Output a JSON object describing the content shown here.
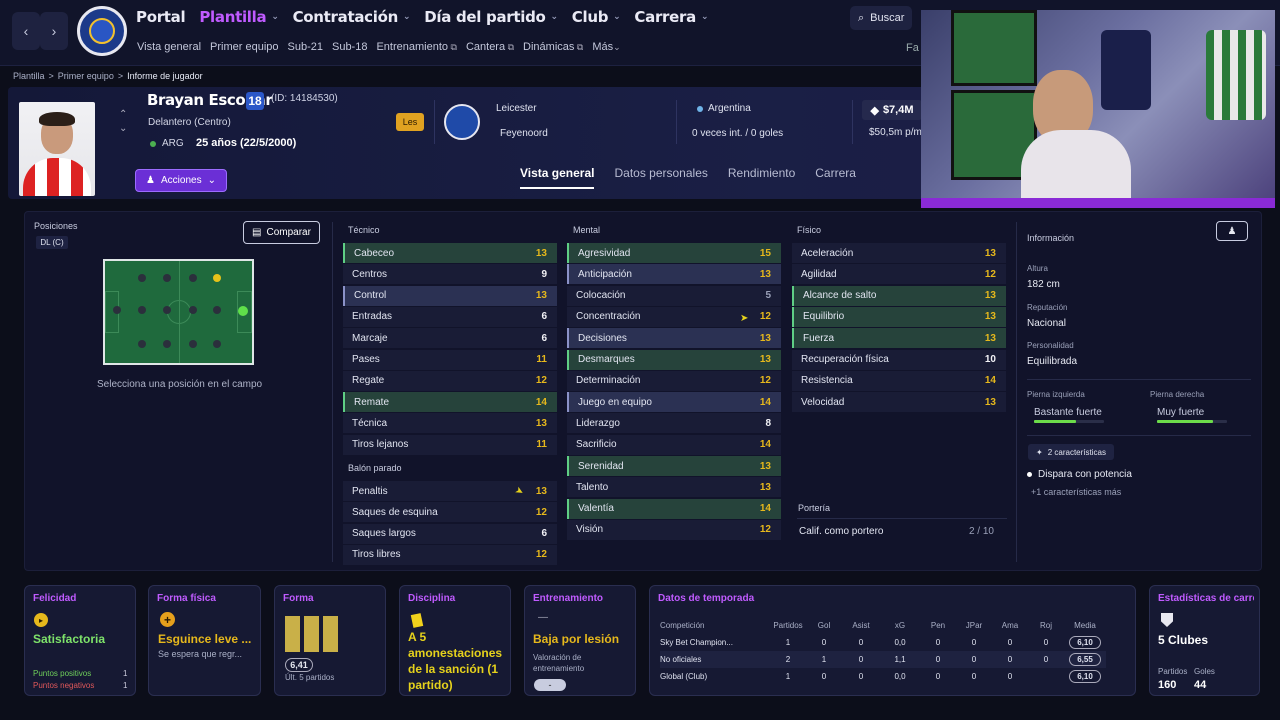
{
  "nav": {
    "main": [
      {
        "label": "Portal",
        "active": false
      },
      {
        "label": "Plantilla",
        "active": true
      },
      {
        "label": "Contratación",
        "active": false
      },
      {
        "label": "Día del partido",
        "active": false
      },
      {
        "label": "Club",
        "active": false
      },
      {
        "label": "Carrera",
        "active": false
      }
    ],
    "sub": [
      "Vista general",
      "Primer equipo",
      "Sub-21",
      "Sub-18",
      "Entrenamiento",
      "Cantera",
      "Dinámicas",
      "Más"
    ],
    "search_label": "Buscar",
    "fav_label": "Fa"
  },
  "breadcrumb": [
    "Plantilla",
    "Primer equipo",
    "Informe de jugador"
  ],
  "player": {
    "name": "Brayan Escobar",
    "number": "18",
    "id": "(ID: 14184530)",
    "position": "Delantero (Centro)",
    "nationality_code": "ARG",
    "age": "25 años (22/5/2000)",
    "actions_label": "Acciones",
    "loan_badge": "Les",
    "club": "Leicester",
    "loan_club": "Feyenoord",
    "nation": "Argentina",
    "caps": "0 veces int. / 0 goles",
    "value": "$7,4M",
    "wage": "$50,5m p/m"
  },
  "tabs": [
    "Vista general",
    "Datos personales",
    "Rendimiento",
    "Carrera"
  ],
  "positions": {
    "title": "Posiciones",
    "badge": "DL (C)",
    "compare_label": "Comparar",
    "hint": "Selecciona una posición en el campo"
  },
  "attributes": {
    "tecnico_title": "Técnico",
    "tecnico": [
      {
        "name": "Cabeceo",
        "value": "13",
        "hl": "g"
      },
      {
        "name": "Centros",
        "value": "9",
        "hl": ""
      },
      {
        "name": "Control",
        "value": "13",
        "hl": "b"
      },
      {
        "name": "Entradas",
        "value": "6",
        "hl": ""
      },
      {
        "name": "Marcaje",
        "value": "6",
        "hl": ""
      },
      {
        "name": "Pases",
        "value": "11",
        "hl": ""
      },
      {
        "name": "Regate",
        "value": "12",
        "hl": ""
      },
      {
        "name": "Remate",
        "value": "14",
        "hl": "g"
      },
      {
        "name": "Técnica",
        "value": "13",
        "hl": ""
      },
      {
        "name": "Tiros lejanos",
        "value": "11",
        "hl": ""
      }
    ],
    "balon_title": "Balón parado",
    "balon": [
      {
        "name": "Penaltis",
        "value": "13",
        "hl": ""
      },
      {
        "name": "Saques de esquina",
        "value": "12",
        "hl": ""
      },
      {
        "name": "Saques largos",
        "value": "6",
        "hl": ""
      },
      {
        "name": "Tiros libres",
        "value": "12",
        "hl": ""
      }
    ],
    "mental_title": "Mental",
    "mental": [
      {
        "name": "Agresividad",
        "value": "15",
        "hl": "g"
      },
      {
        "name": "Anticipación",
        "value": "13",
        "hl": "b"
      },
      {
        "name": "Colocación",
        "value": "5",
        "hl": ""
      },
      {
        "name": "Concentración",
        "value": "12",
        "hl": ""
      },
      {
        "name": "Decisiones",
        "value": "13",
        "hl": "b"
      },
      {
        "name": "Desmarques",
        "value": "13",
        "hl": "g"
      },
      {
        "name": "Determinación",
        "value": "12",
        "hl": ""
      },
      {
        "name": "Juego en equipo",
        "value": "14",
        "hl": "b"
      },
      {
        "name": "Liderazgo",
        "value": "8",
        "hl": ""
      },
      {
        "name": "Sacrificio",
        "value": "14",
        "hl": ""
      },
      {
        "name": "Serenidad",
        "value": "13",
        "hl": "g"
      },
      {
        "name": "Talento",
        "value": "13",
        "hl": ""
      },
      {
        "name": "Valentía",
        "value": "14",
        "hl": "g"
      },
      {
        "name": "Visión",
        "value": "12",
        "hl": ""
      }
    ],
    "fisico_title": "Físico",
    "fisico": [
      {
        "name": "Aceleración",
        "value": "13",
        "hl": ""
      },
      {
        "name": "Agilidad",
        "value": "12",
        "hl": ""
      },
      {
        "name": "Alcance de salto",
        "value": "13",
        "hl": "g"
      },
      {
        "name": "Equilibrio",
        "value": "13",
        "hl": "g"
      },
      {
        "name": "Fuerza",
        "value": "13",
        "hl": "g"
      },
      {
        "name": "Recuperación física",
        "value": "10",
        "hl": ""
      },
      {
        "name": "Resistencia",
        "value": "14",
        "hl": ""
      },
      {
        "name": "Velocidad",
        "value": "13",
        "hl": ""
      }
    ],
    "porteria_title": "Portería",
    "porteria_label": "Calif. como portero",
    "porteria_value": "2 / 10"
  },
  "info": {
    "title": "Información",
    "height_label": "Altura",
    "height": "182 cm",
    "rep_label": "Reputación",
    "rep": "Nacional",
    "pers_label": "Personalidad",
    "pers": "Equilibrada",
    "left_label": "Pierna izquierda",
    "left": "Bastante fuerte",
    "left_level": 0.6,
    "right_label": "Pierna derecha",
    "right": "Muy fuerte",
    "right_level": 0.8,
    "traits_count": "2 características",
    "trait": "Dispara con potencia",
    "more": "+1 características más"
  },
  "cards": {
    "felicidad": {
      "title": "Felicidad",
      "value": "Satisfactoria",
      "pos_label": "Puntos positivos",
      "pos": "1",
      "neg_label": "Puntos negativos",
      "neg": "1"
    },
    "forma_fisica": {
      "title": "Forma física",
      "value": "Esguince leve ...",
      "sub": "Se espera que regr..."
    },
    "forma": {
      "title": "Forma",
      "value": "6,41",
      "sub": "Últ. 5 partidos"
    },
    "disciplina": {
      "title": "Disciplina",
      "value": "A 5 amonestaciones de la sanción (1 partido)"
    },
    "entrenamiento": {
      "title": "Entrenamiento",
      "dash": "—",
      "value": "Baja por lesión",
      "sub": "Valoración de entrenamiento",
      "pill": "-"
    },
    "temporada": {
      "title": "Datos de temporada",
      "headers": [
        "Competición",
        "Partidos",
        "Gol",
        "Asist",
        "xG",
        "Pen",
        "JPar",
        "Ama",
        "Roj",
        "Media"
      ],
      "rows": [
        [
          "Sky Bet Champion...",
          "1",
          "0",
          "0",
          "0,0",
          "0",
          "0",
          "0",
          "0",
          "6,10"
        ],
        [
          "No oficiales",
          "2",
          "1",
          "0",
          "1,1",
          "0",
          "0",
          "0",
          "0",
          "6,55"
        ],
        [
          "Global (Club)",
          "1",
          "0",
          "0",
          "0,0",
          "0",
          "0",
          "0",
          "",
          "6,10"
        ]
      ]
    },
    "carrera": {
      "title": "Estadísticas de carrera",
      "value": "5 Clubes",
      "p_label": "Partidos",
      "p": "160",
      "g_label": "Goles",
      "g": "44"
    }
  },
  "colors": {
    "accent": "#c05bff",
    "highlight_green": "#26433b",
    "highlight_blue": "#2b3153",
    "yellow": "#e6b81c"
  }
}
